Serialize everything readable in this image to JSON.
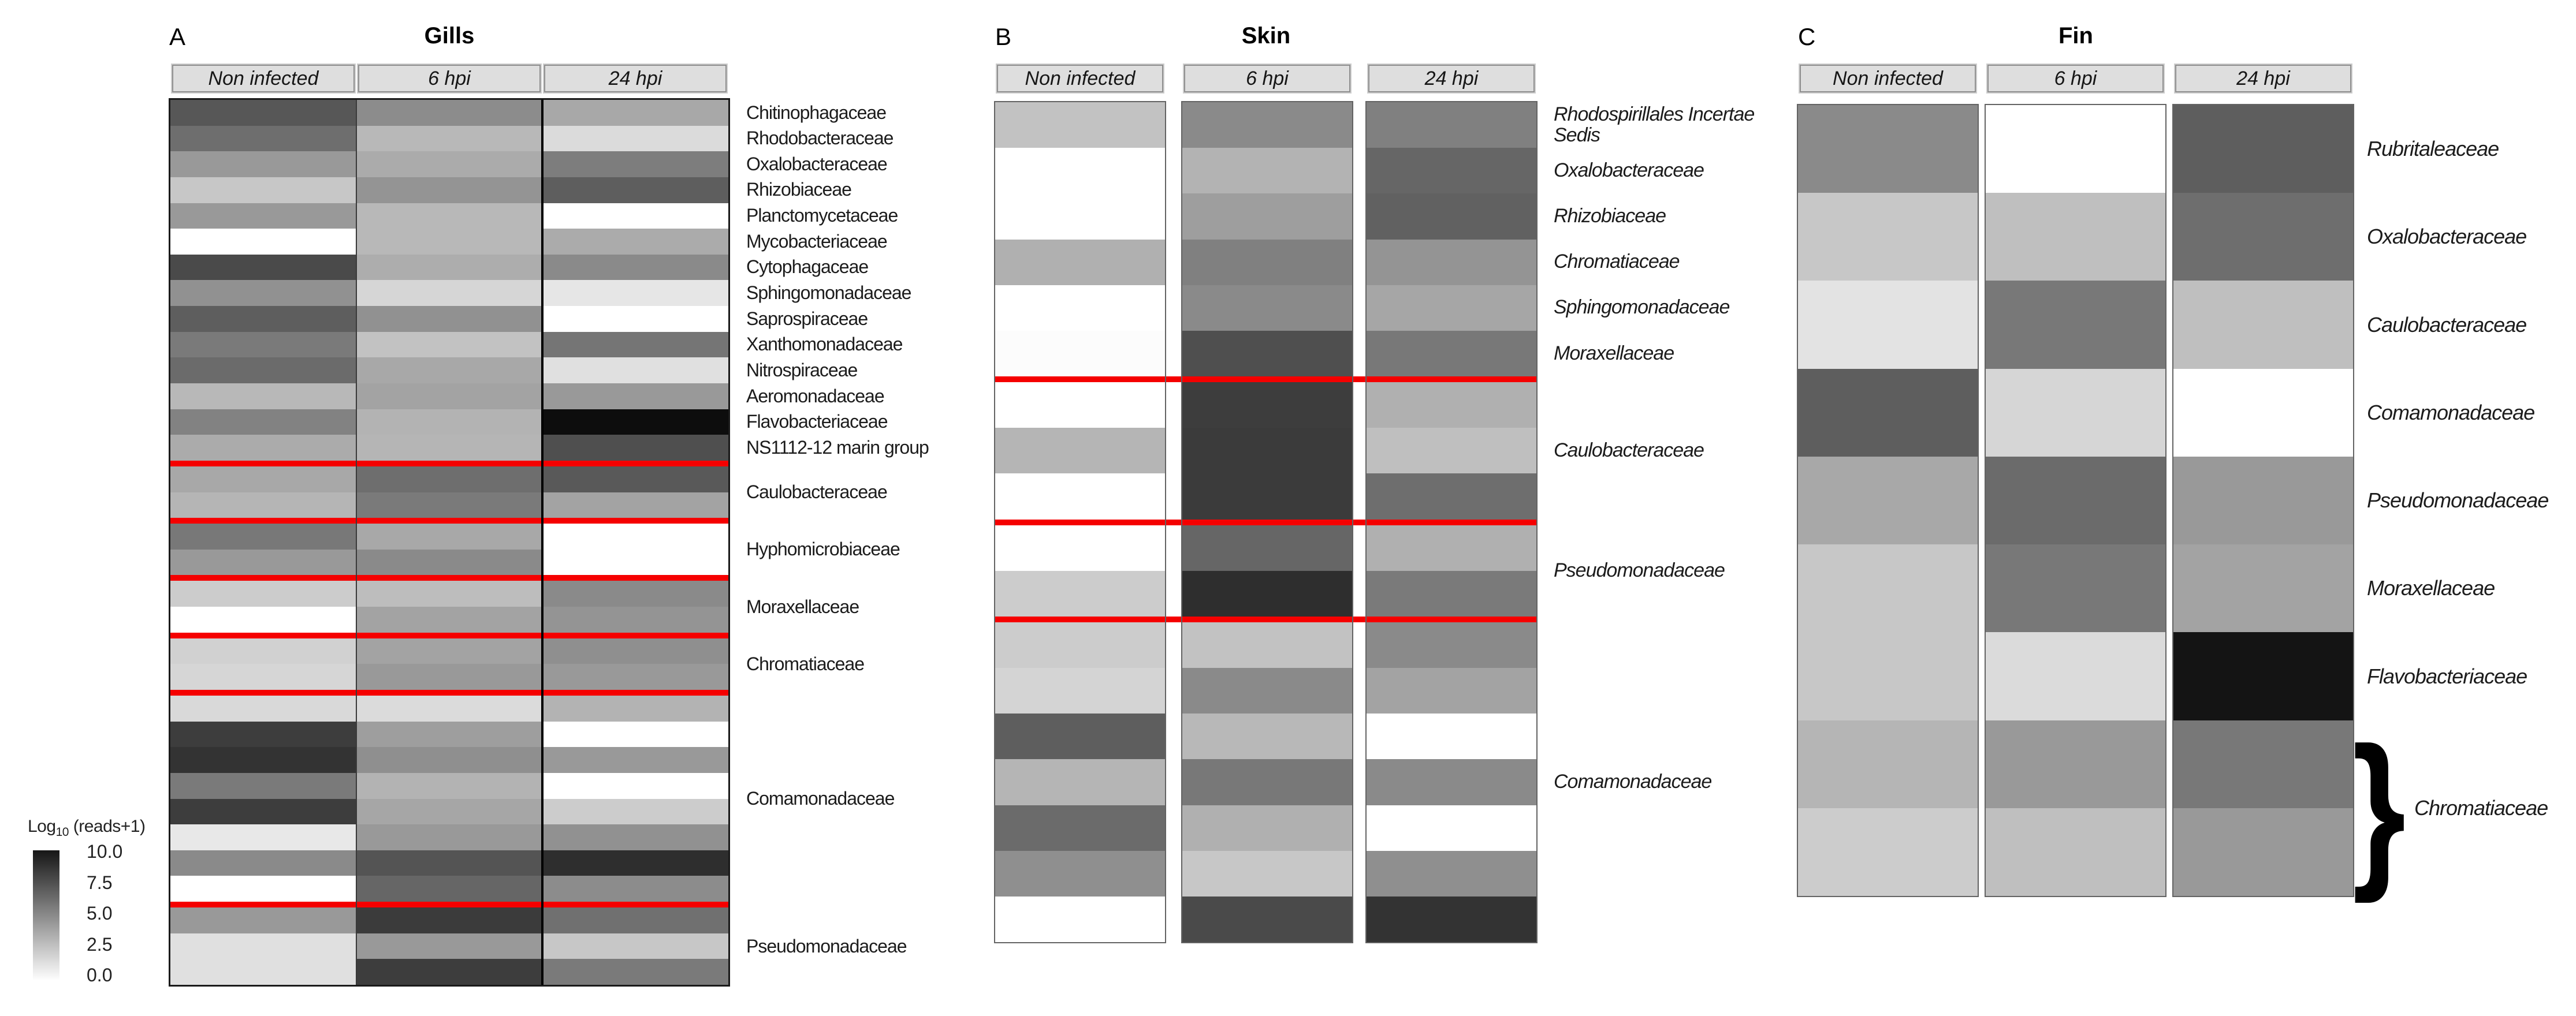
{
  "legend": {
    "title_prefix": "Log",
    "title_sub": "10",
    "title_suffix": " (reads+1)",
    "ticks": [
      "10.0",
      "7.5",
      "5.0",
      "2.5",
      "0.0"
    ]
  },
  "figure_colors": {
    "divider_red": "#f50000",
    "heatmap_low": "#ffffff",
    "heatmap_high": "#000000"
  },
  "chart_data": [
    {
      "type": "heatmap",
      "panel_letter": "A",
      "title": "Gills",
      "columns": [
        "Non infected",
        "6 hpi",
        "24 hpi"
      ],
      "scale": {
        "label": "Log10 (reads+1)",
        "min": 0,
        "max": 10
      },
      "sections": [
        {
          "row_labels": [
            "Chitinophagaceae",
            "Rhodobacteraceae",
            "Oxalobacteraceae",
            "Rhizobiaceae",
            "Planctomycetaceae",
            "Mycobacteriaceae",
            "Cytophagaceae",
            "Sphingomonadaceae",
            "Saprospiraceae",
            "Xanthomonadaceae",
            "Nitrospiraceae",
            "Aeromonadaceae",
            "Flavobacteriaceae",
            "NS1112-12 marin group"
          ],
          "rows": [
            [
              6.6,
              4.5,
              3.4
            ],
            [
              5.7,
              2.8,
              1.4
            ],
            [
              4.0,
              3.3,
              5.1
            ],
            [
              2.2,
              4.2,
              6.3
            ],
            [
              4.0,
              2.8,
              0.0
            ],
            [
              0.0,
              2.8,
              3.3
            ],
            [
              7.1,
              3.2,
              4.6
            ],
            [
              4.3,
              1.6,
              1.0
            ],
            [
              6.3,
              4.3,
              0.0
            ],
            [
              5.2,
              2.4,
              5.4
            ],
            [
              5.8,
              3.4,
              1.2
            ],
            [
              2.8,
              3.6,
              4.0
            ],
            [
              4.9,
              3.0,
              9.5
            ],
            [
              3.3,
              2.9,
              6.9
            ]
          ],
          "divider_after": true
        },
        {
          "group_label": "Caulobacteraceae",
          "rows": [
            [
              3.4,
              5.7,
              6.5
            ],
            [
              2.9,
              5.2,
              3.6
            ]
          ],
          "divider_after": true
        },
        {
          "group_label": "Hyphomicrobiaceae",
          "rows": [
            [
              5.3,
              3.4,
              0.0
            ],
            [
              4.0,
              4.6,
              0.0
            ]
          ],
          "divider_after": true
        },
        {
          "group_label": "Moraxellaceae",
          "rows": [
            [
              2.0,
              2.6,
              4.6
            ],
            [
              0.0,
              3.6,
              4.2
            ]
          ],
          "divider_after": true
        },
        {
          "group_label": "Chromatiaceae",
          "rows": [
            [
              1.8,
              3.6,
              4.4
            ],
            [
              1.6,
              4.0,
              4.0
            ]
          ],
          "divider_after": true
        },
        {
          "group_label": "Comamonadaceae",
          "rows": [
            [
              1.5,
              1.4,
              3.0
            ],
            [
              7.6,
              3.8,
              0.0
            ],
            [
              8.0,
              4.4,
              4.0
            ],
            [
              5.2,
              3.0,
              0.0
            ],
            [
              7.6,
              3.5,
              2.0
            ],
            [
              0.9,
              4.0,
              4.3
            ],
            [
              4.6,
              6.7,
              8.2
            ],
            [
              0.0,
              6.0,
              4.5
            ]
          ],
          "divider_after": true
        },
        {
          "group_label": "Pseudomonadaceae",
          "rows": [
            [
              4.0,
              7.7,
              5.6
            ],
            [
              1.2,
              4.0,
              2.2
            ],
            [
              1.2,
              7.6,
              5.2
            ]
          ],
          "divider_after": false
        }
      ]
    },
    {
      "type": "heatmap",
      "panel_letter": "B",
      "title": "Skin",
      "columns": [
        "Non infected",
        "6 hpi",
        "24 hpi"
      ],
      "scale": {
        "label": "Log10 (reads+1)",
        "min": 0,
        "max": 10
      },
      "sections": [
        {
          "row_labels": [
            "Rhodospirillales Incertae Sedis",
            "Oxalobacteraceae",
            "Rhizobiaceae",
            "Chromatiaceae",
            "Sphingomonadaceae",
            "Moraxellaceae"
          ],
          "rows": [
            [
              2.4,
              4.6,
              5.0
            ],
            [
              0.0,
              3.0,
              6.0
            ],
            [
              0.0,
              3.8,
              6.2
            ],
            [
              3.1,
              5.0,
              4.2
            ],
            [
              0.0,
              4.6,
              3.5
            ],
            [
              0.1,
              6.9,
              5.3
            ]
          ],
          "divider_after": true
        },
        {
          "group_label": "Caulobacteraceae",
          "rows": [
            [
              0.0,
              7.6,
              3.1
            ],
            [
              2.9,
              7.7,
              2.5
            ],
            [
              0.0,
              7.7,
              5.7
            ]
          ],
          "divider_after": true
        },
        {
          "group_label": "Pseudomonadaceae",
          "rows": [
            [
              0.0,
              6.0,
              3.1
            ],
            [
              2.0,
              8.2,
              5.2
            ]
          ],
          "divider_after": true
        },
        {
          "group_label": "Comamonadaceae",
          "rows": [
            [
              2.0,
              2.4,
              4.6
            ],
            [
              1.7,
              4.6,
              3.6
            ],
            [
              6.3,
              2.8,
              0.0
            ],
            [
              2.9,
              5.3,
              4.6
            ],
            [
              5.8,
              3.1,
              0.0
            ],
            [
              4.4,
              2.2,
              4.4
            ],
            [
              0.0,
              7.1,
              8.0
            ]
          ],
          "divider_after": false
        }
      ]
    },
    {
      "type": "heatmap",
      "panel_letter": "C",
      "title": "Fin",
      "columns": [
        "Non infected",
        "6 hpi",
        "24 hpi"
      ],
      "scale": {
        "label": "Log10 (reads+1)",
        "min": 0,
        "max": 10
      },
      "sections": [
        {
          "row_labels": [
            "Rubritaleaceae",
            "Oxalobacteraceae",
            "Caulobacteraceae",
            "Comamonadaceae",
            "Pseudomonadaceae",
            "Moraxellaceae",
            "Flavobacteriaceae"
          ],
          "rows": [
            [
              4.6,
              0.0,
              6.3
            ],
            [
              2.2,
              2.5,
              5.7
            ],
            [
              1.1,
              5.3,
              2.5
            ],
            [
              6.3,
              1.6,
              0.0
            ],
            [
              3.4,
              5.8,
              4.0
            ],
            [
              2.2,
              5.3,
              3.6
            ],
            [
              2.2,
              1.4,
              9.2
            ]
          ],
          "divider_after": false
        },
        {
          "group_label": "Chromatiaceae",
          "brace": true,
          "rows": [
            [
              2.9,
              4.0,
              5.3
            ],
            [
              2.0,
              2.5,
              4.0
            ]
          ],
          "divider_after": false
        }
      ]
    }
  ]
}
